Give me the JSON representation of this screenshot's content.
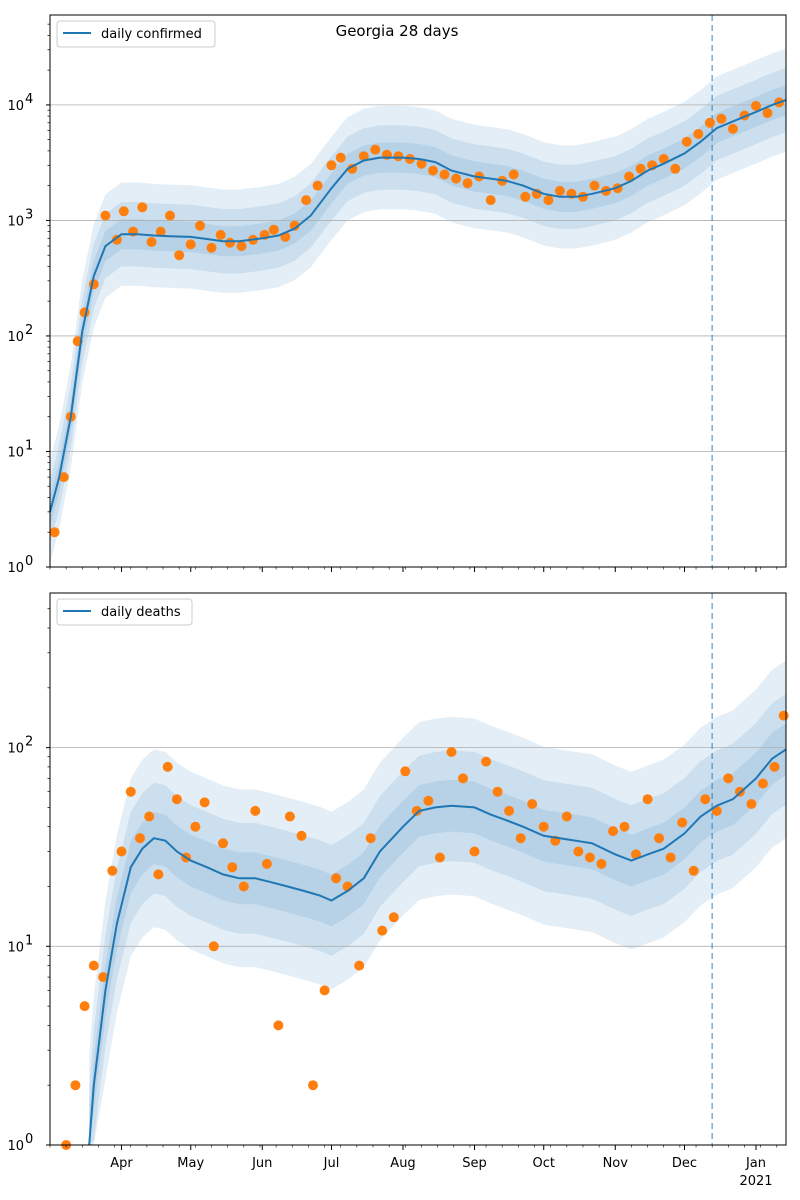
{
  "chart_data": [
    {
      "type": "line",
      "title": "Georgia 28 days",
      "xlabel": "",
      "ylabel": "",
      "yscale": "log",
      "ylim": [
        1,
        60000
      ],
      "xlim": [
        "2020-03-01",
        "2021-01-14"
      ],
      "grid": "y-major",
      "legend_position": "top-left",
      "y_ticks": [
        {
          "value": 1,
          "base": "10",
          "exp": "0"
        },
        {
          "value": 10,
          "base": "10",
          "exp": "1"
        },
        {
          "value": 100,
          "base": "10",
          "exp": "2"
        },
        {
          "value": 1000,
          "base": "10",
          "exp": "3"
        },
        {
          "value": 10000,
          "base": "10",
          "exp": "4"
        }
      ],
      "marker_date": "2020-12-13",
      "series": [
        {
          "name": "daily confirmed",
          "color": "#1f77b4",
          "x": [
            "2020-03-01",
            "2020-03-05",
            "2020-03-10",
            "2020-03-15",
            "2020-03-20",
            "2020-03-25",
            "2020-04-01",
            "2020-04-08",
            "2020-04-15",
            "2020-04-22",
            "2020-05-01",
            "2020-05-08",
            "2020-05-15",
            "2020-05-22",
            "2020-06-01",
            "2020-06-08",
            "2020-06-15",
            "2020-06-22",
            "2020-07-01",
            "2020-07-08",
            "2020-07-15",
            "2020-07-22",
            "2020-08-01",
            "2020-08-08",
            "2020-08-15",
            "2020-08-22",
            "2020-09-01",
            "2020-09-08",
            "2020-09-15",
            "2020-09-22",
            "2020-10-01",
            "2020-10-08",
            "2020-10-15",
            "2020-10-22",
            "2020-11-01",
            "2020-11-08",
            "2020-11-15",
            "2020-11-22",
            "2020-12-01",
            "2020-12-08",
            "2020-12-15",
            "2020-12-22",
            "2021-01-01",
            "2021-01-08",
            "2021-01-14"
          ],
          "values": [
            3,
            6,
            20,
            110,
            330,
            600,
            760,
            760,
            740,
            730,
            720,
            690,
            660,
            660,
            700,
            740,
            850,
            1100,
            1900,
            2800,
            3300,
            3500,
            3500,
            3400,
            3200,
            2700,
            2400,
            2300,
            2200,
            2000,
            1700,
            1600,
            1600,
            1700,
            1900,
            2200,
            2700,
            3100,
            3800,
            4800,
            6300,
            7200,
            8700,
            10000,
            11000
          ]
        },
        {
          "name": "observed",
          "color": "#ff7f0e",
          "x": [
            "2020-03-03",
            "2020-03-07",
            "2020-03-10",
            "2020-03-13",
            "2020-03-16",
            "2020-03-20",
            "2020-03-25",
            "2020-03-30",
            "2020-04-02",
            "2020-04-06",
            "2020-04-10",
            "2020-04-14",
            "2020-04-18",
            "2020-04-22",
            "2020-04-26",
            "2020-05-01",
            "2020-05-05",
            "2020-05-10",
            "2020-05-14",
            "2020-05-18",
            "2020-05-23",
            "2020-05-28",
            "2020-06-02",
            "2020-06-06",
            "2020-06-11",
            "2020-06-15",
            "2020-06-20",
            "2020-06-25",
            "2020-07-01",
            "2020-07-05",
            "2020-07-10",
            "2020-07-15",
            "2020-07-20",
            "2020-07-25",
            "2020-07-30",
            "2020-08-04",
            "2020-08-09",
            "2020-08-14",
            "2020-08-19",
            "2020-08-24",
            "2020-08-29",
            "2020-09-03",
            "2020-09-08",
            "2020-09-13",
            "2020-09-18",
            "2020-09-23",
            "2020-09-28",
            "2020-10-03",
            "2020-10-08",
            "2020-10-13",
            "2020-10-18",
            "2020-10-23",
            "2020-10-28",
            "2020-11-02",
            "2020-11-07",
            "2020-11-12",
            "2020-11-17",
            "2020-11-22",
            "2020-11-27",
            "2020-12-02",
            "2020-12-07",
            "2020-12-12",
            "2020-12-17",
            "2020-12-22",
            "2020-12-27",
            "2021-01-01",
            "2021-01-06",
            "2021-01-11"
          ],
          "values": [
            2,
            6,
            20,
            90,
            160,
            280,
            1100,
            680,
            1200,
            800,
            1300,
            650,
            800,
            1100,
            500,
            620,
            900,
            580,
            750,
            640,
            600,
            680,
            750,
            830,
            720,
            900,
            1500,
            2000,
            3000,
            3500,
            2800,
            3600,
            4100,
            3700,
            3600,
            3400,
            3100,
            2700,
            2500,
            2300,
            2100,
            2400,
            1500,
            2200,
            2500,
            1600,
            1700,
            1500,
            1800,
            1700,
            1600,
            2000,
            1800,
            1900,
            2400,
            2800,
            3000,
            3400,
            2800,
            4800,
            5600,
            7000,
            7600,
            6200,
            8100,
            9800,
            8500,
            10500
          ]
        }
      ]
    },
    {
      "type": "line",
      "title": "",
      "xlabel": "",
      "ylabel": "",
      "yscale": "log",
      "ylim": [
        1,
        600
      ],
      "xlim": [
        "2020-03-01",
        "2021-01-14"
      ],
      "grid": "y-major",
      "legend_position": "top-left",
      "y_ticks": [
        {
          "value": 1,
          "base": "10",
          "exp": "0"
        },
        {
          "value": 10,
          "base": "10",
          "exp": "1"
        },
        {
          "value": 100,
          "base": "10",
          "exp": "2"
        }
      ],
      "x_ticks": [
        {
          "date": "2020-04-01",
          "label": "Apr"
        },
        {
          "date": "2020-05-01",
          "label": "May"
        },
        {
          "date": "2020-06-01",
          "label": "Jun"
        },
        {
          "date": "2020-07-01",
          "label": "Jul"
        },
        {
          "date": "2020-08-01",
          "label": "Aug"
        },
        {
          "date": "2020-09-01",
          "label": "Sep"
        },
        {
          "date": "2020-10-01",
          "label": "Oct"
        },
        {
          "date": "2020-11-01",
          "label": "Nov"
        },
        {
          "date": "2020-12-01",
          "label": "Dec"
        },
        {
          "date": "2021-01-01",
          "label": "Jan",
          "sublabel": "2021"
        }
      ],
      "marker_date": "2020-12-13",
      "series": [
        {
          "name": "daily deaths",
          "color": "#1f77b4",
          "x": [
            "2020-03-18",
            "2020-03-20",
            "2020-03-25",
            "2020-03-30",
            "2020-04-05",
            "2020-04-10",
            "2020-04-15",
            "2020-04-20",
            "2020-04-25",
            "2020-05-01",
            "2020-05-08",
            "2020-05-15",
            "2020-05-22",
            "2020-05-29",
            "2020-06-05",
            "2020-06-12",
            "2020-06-19",
            "2020-06-26",
            "2020-07-01",
            "2020-07-08",
            "2020-07-15",
            "2020-07-22",
            "2020-08-01",
            "2020-08-08",
            "2020-08-15",
            "2020-08-22",
            "2020-09-01",
            "2020-09-08",
            "2020-09-15",
            "2020-09-22",
            "2020-10-01",
            "2020-10-08",
            "2020-10-15",
            "2020-10-22",
            "2020-11-01",
            "2020-11-08",
            "2020-11-15",
            "2020-11-22",
            "2020-12-01",
            "2020-12-08",
            "2020-12-15",
            "2020-12-22",
            "2021-01-01",
            "2021-01-08",
            "2021-01-14"
          ],
          "values": [
            1,
            2,
            6,
            13,
            25,
            31,
            35,
            34,
            30,
            27,
            25,
            23,
            22,
            22,
            21,
            20,
            19,
            18,
            17,
            19,
            22,
            30,
            40,
            48,
            50,
            51,
            50,
            46,
            43,
            40,
            36,
            35,
            34,
            33,
            29,
            27,
            29,
            31,
            37,
            45,
            51,
            55,
            70,
            88,
            98
          ]
        },
        {
          "name": "observed",
          "color": "#ff7f0e",
          "x": [
            "2020-03-08",
            "2020-03-12",
            "2020-03-16",
            "2020-03-20",
            "2020-03-24",
            "2020-03-28",
            "2020-04-01",
            "2020-04-05",
            "2020-04-09",
            "2020-04-13",
            "2020-04-17",
            "2020-04-21",
            "2020-04-25",
            "2020-04-29",
            "2020-05-03",
            "2020-05-07",
            "2020-05-11",
            "2020-05-15",
            "2020-05-19",
            "2020-05-24",
            "2020-05-29",
            "2020-06-03",
            "2020-06-08",
            "2020-06-13",
            "2020-06-18",
            "2020-06-23",
            "2020-06-28",
            "2020-07-03",
            "2020-07-08",
            "2020-07-13",
            "2020-07-18",
            "2020-07-23",
            "2020-07-28",
            "2020-08-02",
            "2020-08-07",
            "2020-08-12",
            "2020-08-17",
            "2020-08-22",
            "2020-08-27",
            "2020-09-01",
            "2020-09-06",
            "2020-09-11",
            "2020-09-16",
            "2020-09-21",
            "2020-09-26",
            "2020-10-01",
            "2020-10-06",
            "2020-10-11",
            "2020-10-16",
            "2020-10-21",
            "2020-10-26",
            "2020-10-31",
            "2020-11-05",
            "2020-11-10",
            "2020-11-15",
            "2020-11-20",
            "2020-11-25",
            "2020-11-30",
            "2020-12-05",
            "2020-12-10",
            "2020-12-15",
            "2020-12-20",
            "2020-12-25",
            "2020-12-30",
            "2021-01-04",
            "2021-01-09",
            "2021-01-13"
          ],
          "values": [
            1,
            2,
            5,
            8,
            7,
            24,
            30,
            60,
            35,
            45,
            23,
            80,
            55,
            28,
            40,
            53,
            10,
            33,
            25,
            20,
            48,
            26,
            4,
            45,
            36,
            2,
            6,
            22,
            20,
            8,
            35,
            12,
            14,
            76,
            48,
            54,
            28,
            95,
            70,
            30,
            85,
            60,
            48,
            35,
            52,
            40,
            34,
            45,
            30,
            28,
            26,
            38,
            40,
            29,
            55,
            35,
            28,
            42,
            24,
            55,
            48,
            70,
            60,
            52,
            66,
            80,
            145
          ]
        }
      ]
    }
  ],
  "legends": {
    "top": "daily confirmed",
    "bottom": "daily deaths"
  }
}
